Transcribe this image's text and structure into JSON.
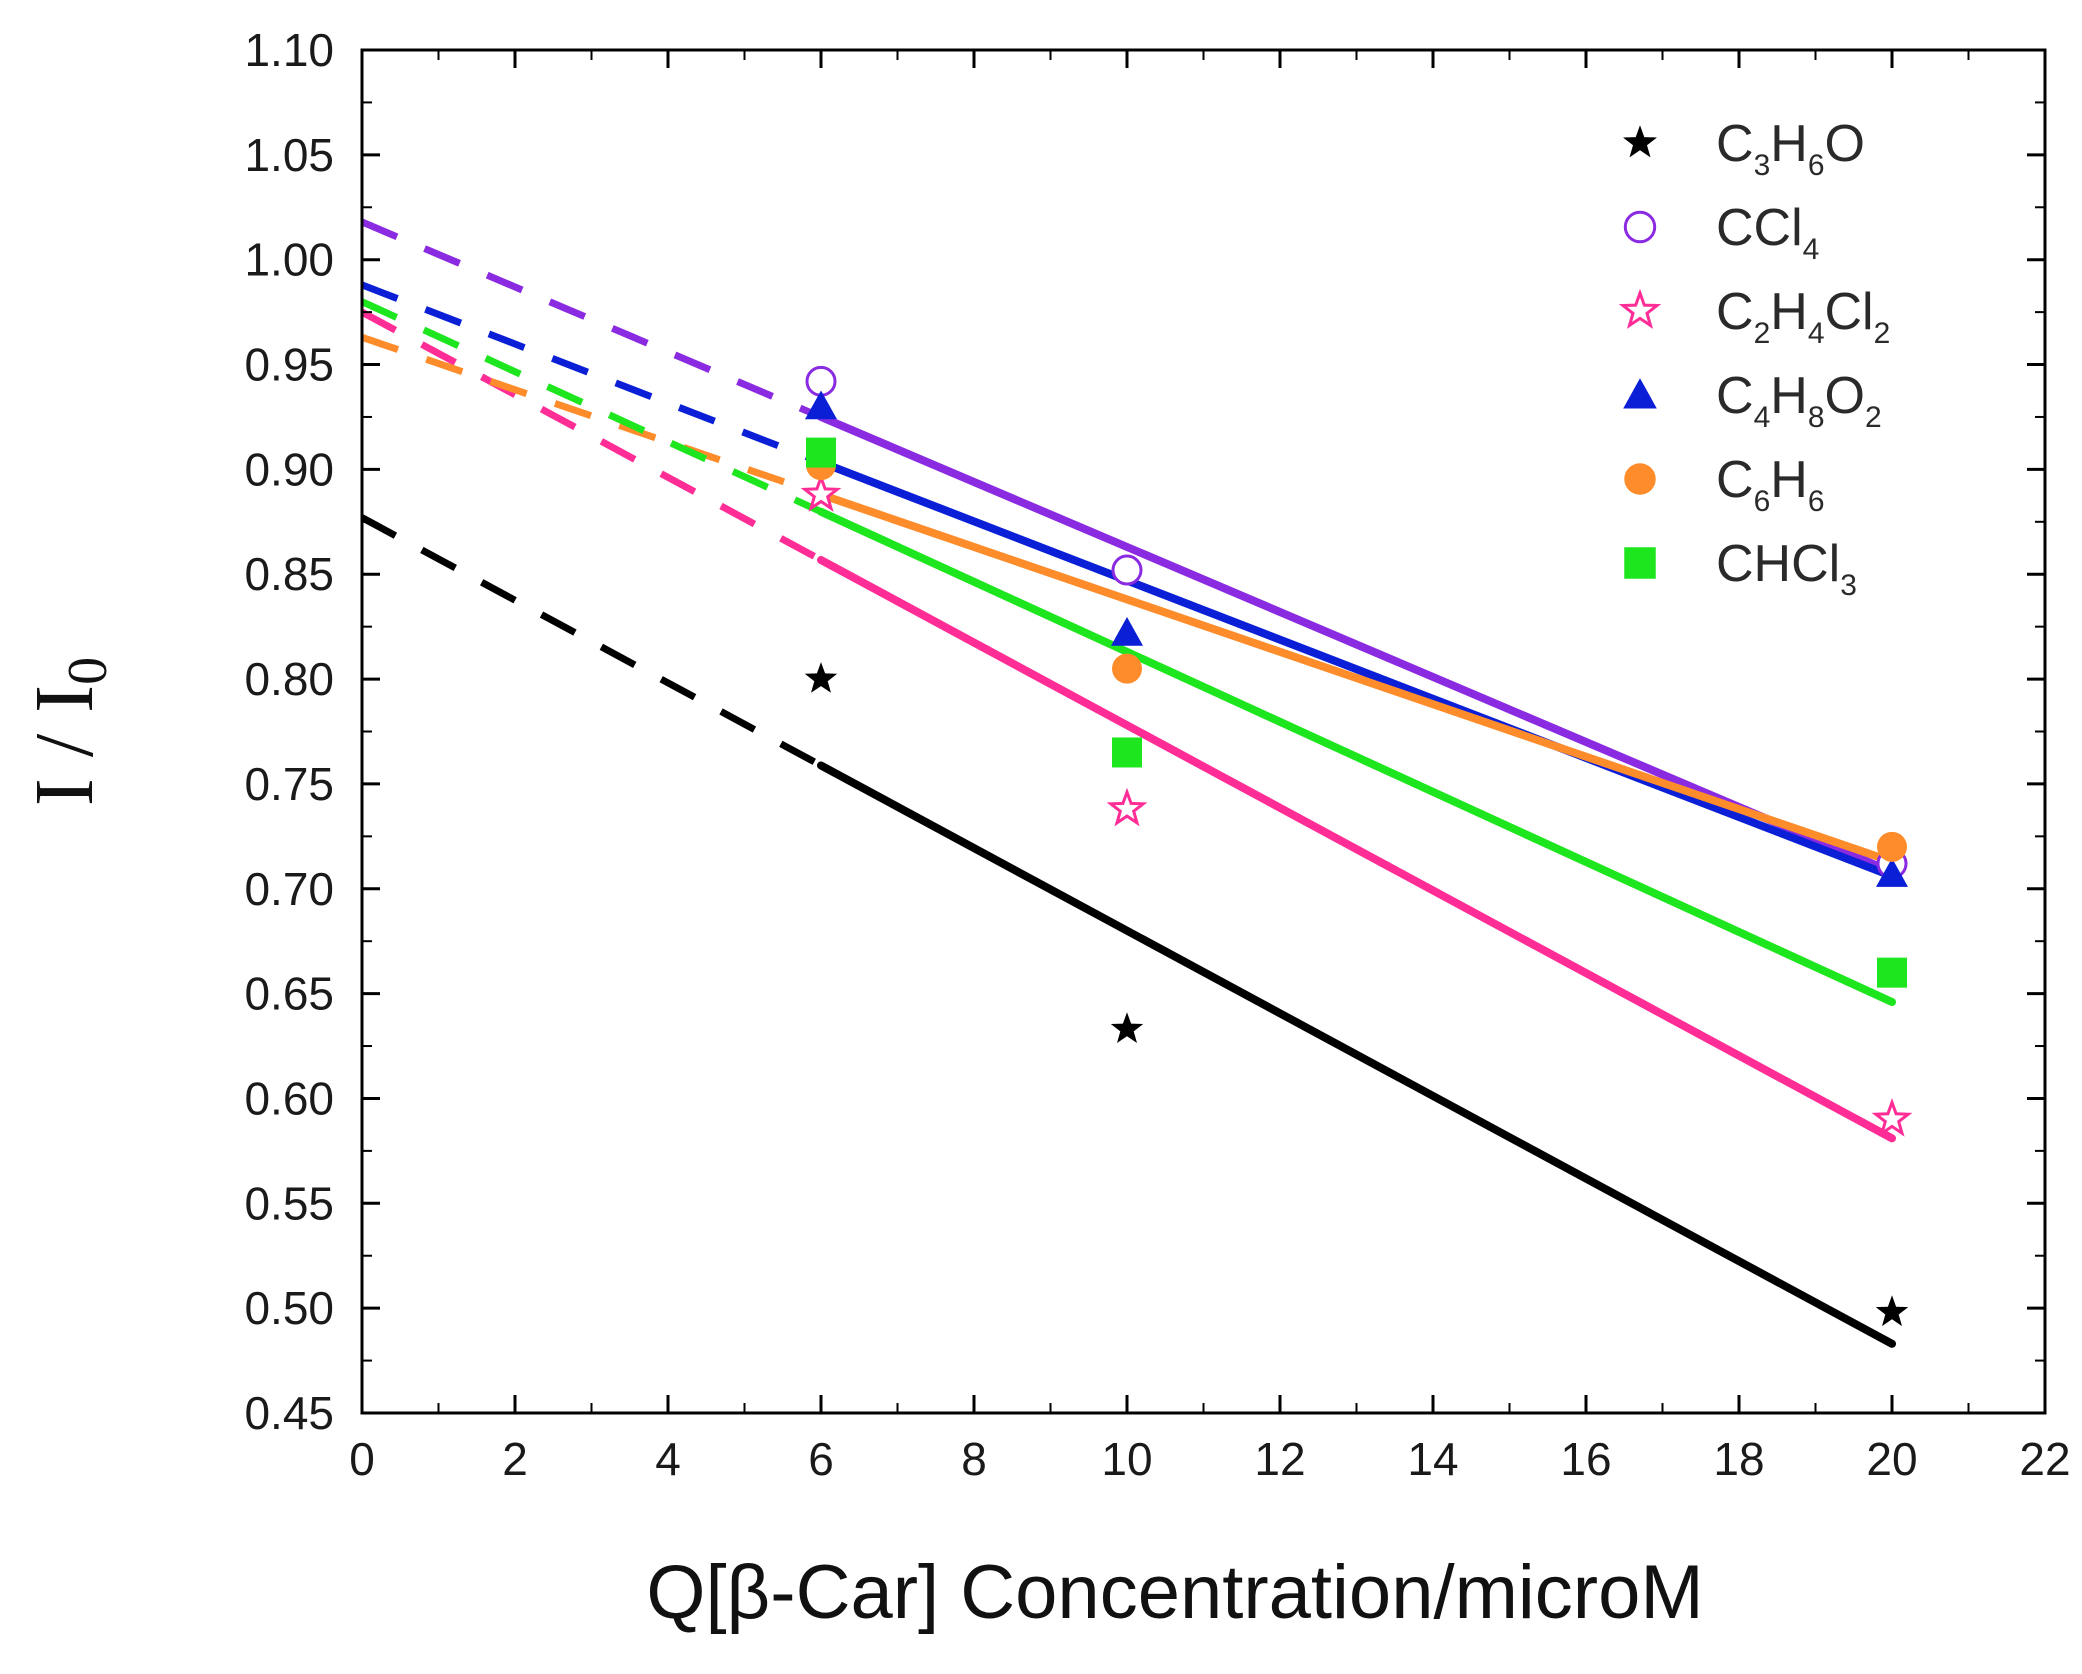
{
  "chart_data": {
    "type": "scatter",
    "title": "",
    "xlabel": "Q[β-Car] Concentration/microM",
    "ylabel_main": "I / I",
    "ylabel_sub": "0",
    "xlim": [
      0,
      22
    ],
    "ylim": [
      0.45,
      1.1
    ],
    "x_ticks": [
      0,
      2,
      4,
      6,
      8,
      10,
      12,
      14,
      16,
      18,
      20,
      22
    ],
    "x_tick_labels": [
      "0",
      "2",
      "4",
      "6",
      "8",
      "10",
      "12",
      "14",
      "16",
      "18",
      "20",
      "22"
    ],
    "y_ticks": [
      0.45,
      0.5,
      0.55,
      0.6,
      0.65,
      0.7,
      0.75,
      0.8,
      0.85,
      0.9,
      0.95,
      1.0,
      1.05,
      1.1
    ],
    "y_tick_labels": [
      "0.45",
      "0.50",
      "0.55",
      "0.60",
      "0.65",
      "0.70",
      "0.75",
      "0.80",
      "0.85",
      "0.90",
      "0.95",
      "1.00",
      "1.05",
      "1.10"
    ],
    "grid": false,
    "legend_position": "top-right",
    "series": [
      {
        "name": "C3H6O",
        "label_parts": [
          [
            "C",
            ""
          ],
          [
            "3",
            "sub"
          ],
          [
            "H",
            ""
          ],
          [
            "6",
            "sub"
          ],
          [
            "O",
            ""
          ]
        ],
        "color": "#000000",
        "marker": "star-filled",
        "x": [
          6,
          10,
          20
        ],
        "y": [
          0.8,
          0.633,
          0.498
        ],
        "fit": {
          "intercept": 0.877,
          "slope": -0.0197
        }
      },
      {
        "name": "CCl4",
        "label_parts": [
          [
            "CCl",
            ""
          ],
          [
            "4",
            "sub"
          ]
        ],
        "color": "#8a2be2",
        "marker": "circle-open",
        "x": [
          6,
          10,
          20
        ],
        "y": [
          0.942,
          0.852,
          0.712
        ],
        "fit": {
          "intercept": 1.018,
          "slope": -0.0155
        }
      },
      {
        "name": "C2H4Cl2",
        "label_parts": [
          [
            "C",
            ""
          ],
          [
            "2",
            "sub"
          ],
          [
            "H",
            ""
          ],
          [
            "4",
            "sub"
          ],
          [
            "Cl",
            ""
          ],
          [
            "2",
            "sub"
          ]
        ],
        "color": "#ff2d95",
        "marker": "star-open",
        "x": [
          6,
          10,
          20
        ],
        "y": [
          0.888,
          0.738,
          0.59
        ],
        "fit": {
          "intercept": 0.975,
          "slope": -0.0197
        }
      },
      {
        "name": "C4H8O2",
        "label_parts": [
          [
            "C",
            ""
          ],
          [
            "4",
            "sub"
          ],
          [
            "H",
            ""
          ],
          [
            "8",
            "sub"
          ],
          [
            "O",
            ""
          ],
          [
            "2",
            "sub"
          ]
        ],
        "color": "#0a1fd6",
        "marker": "triangle-filled",
        "x": [
          6,
          10,
          20
        ],
        "y": [
          0.93,
          0.822,
          0.707
        ],
        "fit": {
          "intercept": 0.988,
          "slope": -0.0141
        }
      },
      {
        "name": "C6H6",
        "label_parts": [
          [
            "C",
            ""
          ],
          [
            "6",
            "sub"
          ],
          [
            "H",
            ""
          ],
          [
            "6",
            "sub"
          ]
        ],
        "color": "#ff8c2a",
        "marker": "circle-filled",
        "x": [
          6,
          10,
          20
        ],
        "y": [
          0.902,
          0.805,
          0.72
        ],
        "fit": {
          "intercept": 0.963,
          "slope": -0.0125
        }
      },
      {
        "name": "CHCl3",
        "label_parts": [
          [
            "CHCl",
            ""
          ],
          [
            "3",
            "sub"
          ]
        ],
        "color": "#1ee61e",
        "marker": "square-filled",
        "x": [
          6,
          10,
          20
        ],
        "y": [
          0.908,
          0.765,
          0.66
        ],
        "fit": {
          "intercept": 0.98,
          "slope": -0.0167
        }
      }
    ]
  }
}
